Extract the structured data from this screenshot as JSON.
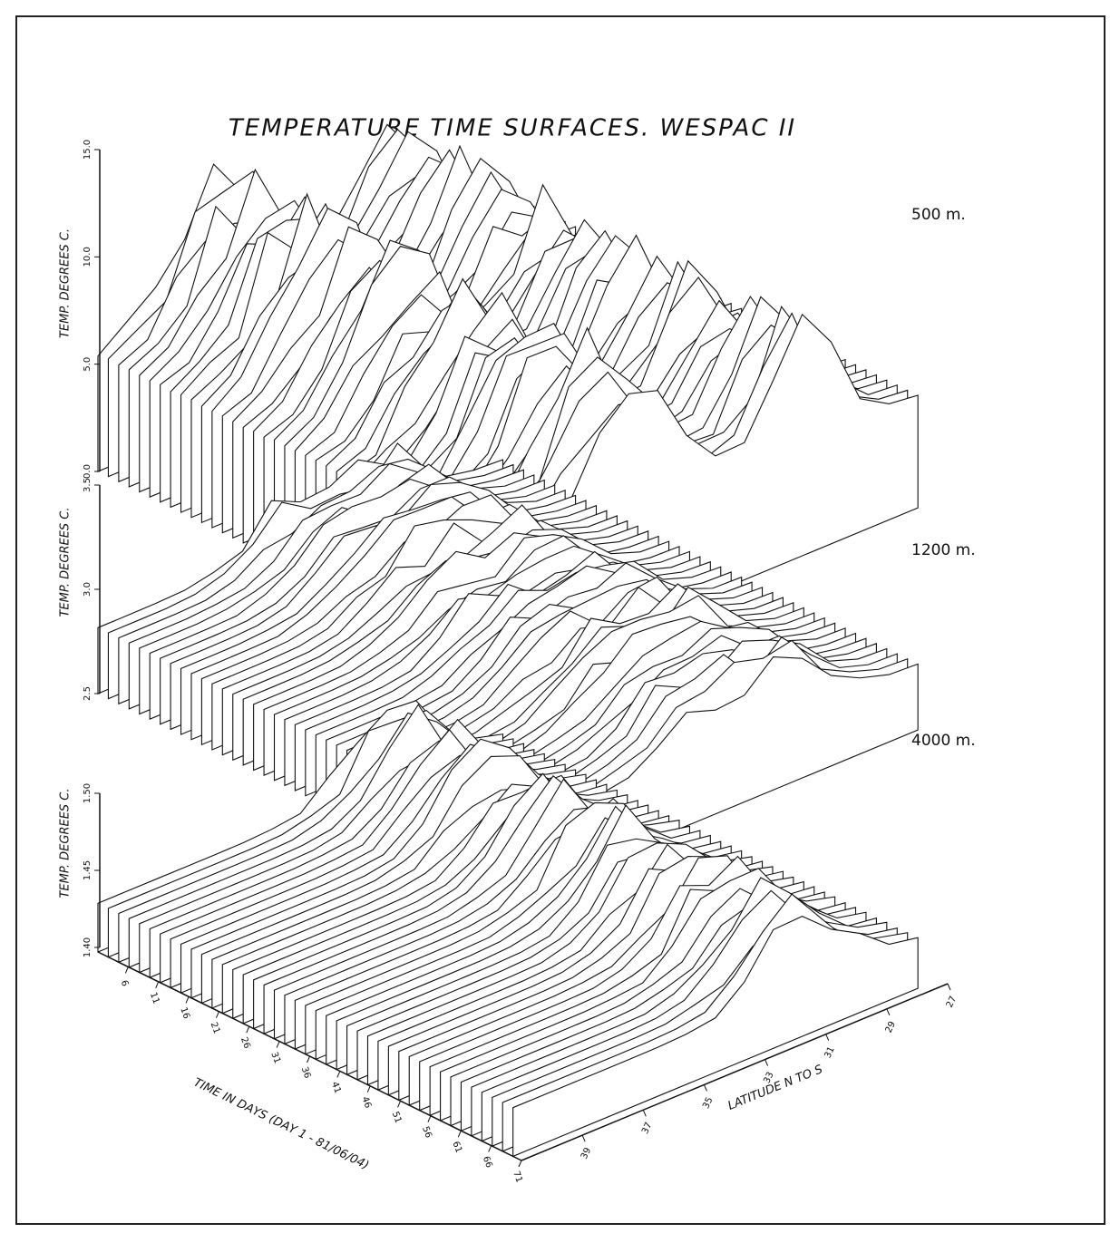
{
  "chart_data": {
    "type": "surface3d",
    "title": "TEMPERATURE TIME SURFACES.  WESPAC II",
    "xlabel": "TIME IN DAYS (DAY 1 - 81/06/04)",
    "xlim": [
      1,
      71
    ],
    "xticks": [
      6,
      11,
      16,
      21,
      26,
      31,
      36,
      41,
      46,
      51,
      56,
      61,
      66,
      71
    ],
    "zlabel": "LATITUDE N TO S",
    "zlim": [
      41,
      27
    ],
    "zticks": [
      39,
      37,
      35,
      33,
      31,
      29,
      27
    ],
    "panels": [
      {
        "label": "500 m.",
        "ylabel": "TEMP.  DEGREES C.",
        "ylim": [
          0,
          15
        ],
        "yticks": [
          {
            "value": 0,
            "label": "0.0"
          },
          {
            "value": 5,
            "label": "5.0"
          },
          {
            "value": 10,
            "label": "10.0"
          },
          {
            "value": 15,
            "label": "15.0"
          }
        ]
      },
      {
        "label": "1200 m.",
        "ylabel": "TEMP.  DEGREES C.",
        "ylim": [
          2.5,
          3.5
        ],
        "yticks": [
          2.5,
          {
            "value": 3,
            "label": "3.0"
          },
          3.5
        ]
      },
      {
        "label": "4000 m.",
        "ylabel": "TEMP.  DEGREES C.",
        "ylim": [
          1.4,
          1.5
        ],
        "yticks": [
          {
            "value": 1.4,
            "label": "1.40"
          },
          1.45,
          {
            "value": 1.5,
            "label": "1.50"
          }
        ]
      }
    ]
  }
}
